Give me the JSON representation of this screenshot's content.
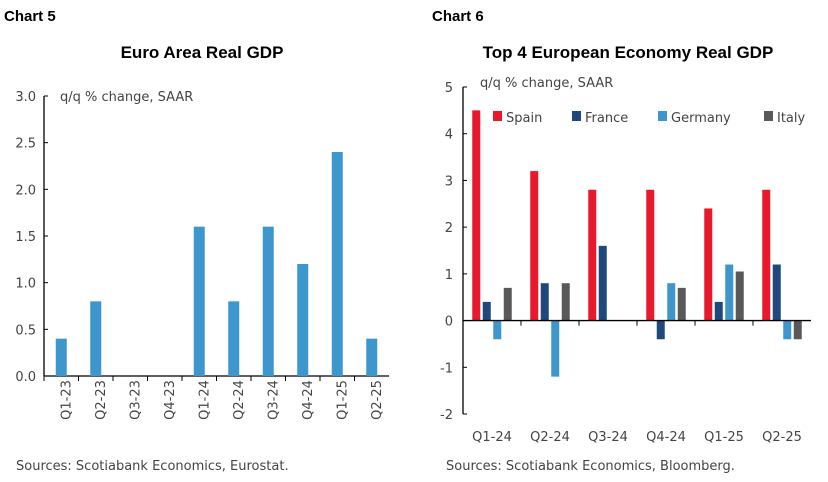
{
  "charts_header": [
    "Chart 5",
    "Chart 6"
  ],
  "chart_data": [
    {
      "type": "bar",
      "label": "Chart 5",
      "title": "Euro Area Real GDP",
      "ylabel": "q/q % change, SAAR",
      "categories": [
        "Q1-23",
        "Q2-23",
        "Q3-23",
        "Q4-23",
        "Q1-24",
        "Q2-24",
        "Q3-24",
        "Q4-24",
        "Q1-25",
        "Q2-25"
      ],
      "values": [
        0.4,
        0.8,
        0.0,
        0.0,
        1.6,
        0.8,
        1.6,
        1.2,
        2.4,
        0.4
      ],
      "ylim": [
        0,
        3
      ],
      "yticks": [
        "0.0",
        "0.5",
        "1.0",
        "1.5",
        "2.0",
        "2.5",
        "3.0"
      ],
      "color": "#3e97cc",
      "source": "Sources: Scotiabank Economics, Eurostat."
    },
    {
      "type": "bar",
      "label": "Chart 6",
      "title": "Top 4 European Economy Real GDP",
      "ylabel": "q/q % change, SAAR",
      "categories": [
        "Q1-24",
        "Q2-24",
        "Q3-24",
        "Q4-24",
        "Q1-25",
        "Q2-25"
      ],
      "series": [
        {
          "name": "Spain",
          "color": "#e8192c",
          "values": [
            4.5,
            3.2,
            2.8,
            2.8,
            2.4,
            2.8
          ]
        },
        {
          "name": "France",
          "color": "#1f497d",
          "values": [
            0.4,
            0.8,
            1.6,
            -0.4,
            0.4,
            1.2
          ]
        },
        {
          "name": "Germany",
          "color": "#3e97cc",
          "values": [
            -0.4,
            -1.2,
            0.0,
            0.8,
            1.2,
            -0.4
          ]
        },
        {
          "name": "Italy",
          "color": "#595959",
          "values": [
            0.7,
            0.8,
            0.0,
            0.7,
            1.05,
            -0.4
          ]
        }
      ],
      "ylim": [
        -2,
        5
      ],
      "yticks": [
        "-2",
        "-1",
        "0",
        "1",
        "2",
        "3",
        "4",
        "5"
      ],
      "legend": "top",
      "source": "Sources: Scotiabank Economics, Bloomberg."
    }
  ]
}
